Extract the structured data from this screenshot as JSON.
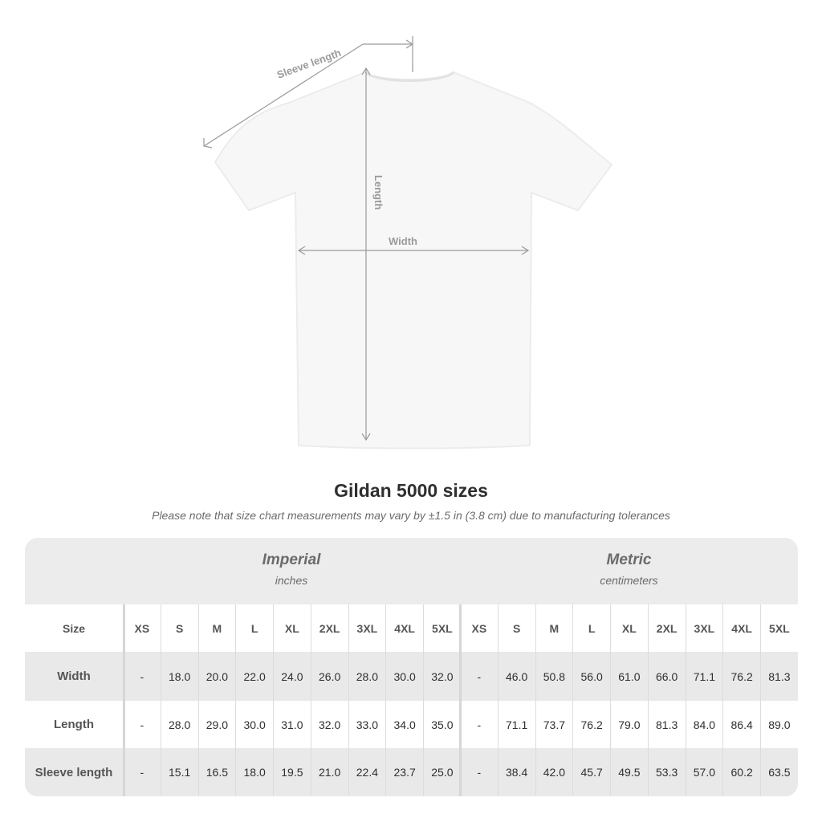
{
  "diagram": {
    "labels": {
      "sleeve": "Sleeve length",
      "length": "Length",
      "width": "Width"
    }
  },
  "title": "Gildan 5000 sizes",
  "note": "Please note that size chart measurements may vary by ±1.5 in (3.8 cm) due to manufacturing tolerances",
  "table": {
    "imperial": {
      "heading": "Imperial",
      "unit": "inches"
    },
    "metric": {
      "heading": "Metric",
      "unit": "centimeters"
    },
    "size_label": "Size",
    "sizes": [
      "XS",
      "S",
      "M",
      "L",
      "XL",
      "2XL",
      "3XL",
      "4XL",
      "5XL"
    ],
    "rows": [
      {
        "label": "Width",
        "imperial": [
          "-",
          "18.0",
          "20.0",
          "22.0",
          "24.0",
          "26.0",
          "28.0",
          "30.0",
          "32.0"
        ],
        "metric": [
          "-",
          "46.0",
          "50.8",
          "56.0",
          "61.0",
          "66.0",
          "71.1",
          "76.2",
          "81.3"
        ]
      },
      {
        "label": "Length",
        "imperial": [
          "-",
          "28.0",
          "29.0",
          "30.0",
          "31.0",
          "32.0",
          "33.0",
          "34.0",
          "35.0"
        ],
        "metric": [
          "-",
          "71.1",
          "73.7",
          "76.2",
          "79.0",
          "81.3",
          "84.0",
          "86.4",
          "89.0"
        ]
      },
      {
        "label": "Sleeve length",
        "imperial": [
          "-",
          "15.1",
          "16.5",
          "18.0",
          "19.5",
          "21.0",
          "22.4",
          "23.7",
          "25.0"
        ],
        "metric": [
          "-",
          "38.4",
          "42.0",
          "45.7",
          "49.5",
          "53.3",
          "57.0",
          "60.2",
          "63.5"
        ]
      }
    ]
  }
}
